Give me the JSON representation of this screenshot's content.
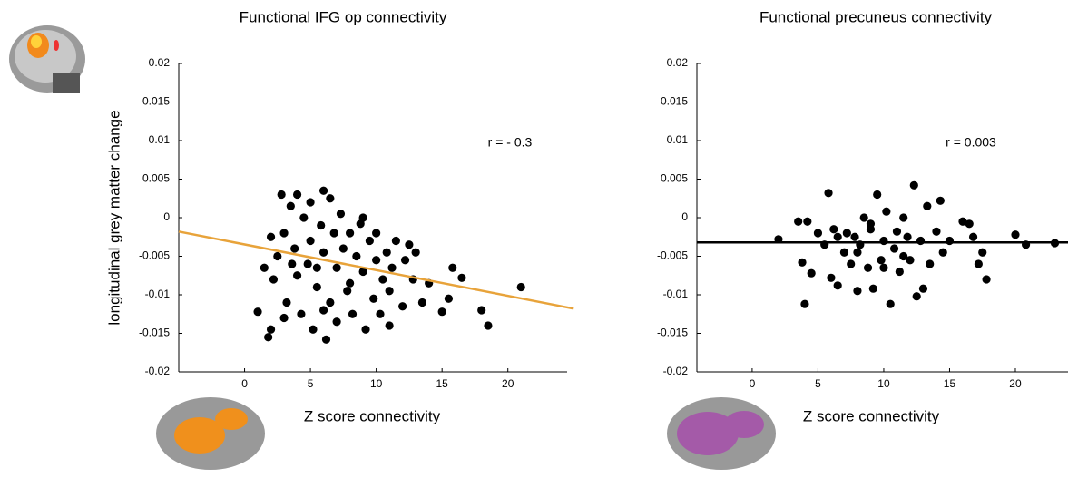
{
  "chart_data": [
    {
      "type": "scatter",
      "title": "Functional IFG op  connectivity",
      "x_label": "Z score connectivity",
      "y_label": "longitudinal grey matter change",
      "annotation": "r = - 0.3",
      "color": "#000000",
      "x": [
        1,
        1.5,
        1.8,
        2,
        2.2,
        2.5,
        2.8,
        3,
        3,
        3.2,
        3.5,
        3.8,
        4,
        4,
        4.3,
        4.5,
        4.8,
        5,
        5,
        5.2,
        5.5,
        5.8,
        6,
        6,
        6.2,
        6.5,
        6.5,
        6.8,
        7,
        7,
        7.3,
        7.5,
        7.8,
        8,
        8.2,
        8.5,
        8.8,
        9,
        9.2,
        9.5,
        9.8,
        10,
        10,
        10.3,
        10.5,
        10.8,
        11,
        11.2,
        11.5,
        12,
        12.2,
        12.5,
        12.8,
        13,
        13.5,
        14,
        15,
        15.5,
        15.8,
        16.5,
        18,
        18.5,
        21,
        2,
        3.6,
        5.5,
        8,
        9,
        11,
        6
      ],
      "values": [
        -0.0122,
        -0.0065,
        -0.0155,
        -0.0145,
        -0.008,
        -0.005,
        0.003,
        -0.013,
        -0.002,
        -0.011,
        0.0015,
        -0.004,
        0.003,
        -0.0075,
        -0.0125,
        0,
        -0.006,
        0.002,
        -0.003,
        -0.0145,
        -0.009,
        -0.001,
        0.0035,
        -0.0045,
        -0.0158,
        0.0025,
        -0.011,
        -0.002,
        -0.0065,
        -0.0135,
        0.0005,
        -0.004,
        -0.0095,
        -0.002,
        -0.0125,
        -0.005,
        -0.0008,
        -0.007,
        -0.0145,
        -0.003,
        -0.0105,
        -0.0055,
        -0.002,
        -0.0125,
        -0.008,
        -0.0045,
        -0.014,
        -0.0065,
        -0.003,
        -0.0115,
        -0.0055,
        -0.0035,
        -0.008,
        -0.0045,
        -0.011,
        -0.0085,
        -0.0122,
        -0.0105,
        -0.0065,
        -0.0078,
        -0.012,
        -0.014,
        -0.009,
        -0.0025,
        -0.006,
        -0.0065,
        -0.0085,
        0,
        -0.0095,
        -0.012
      ],
      "fit_line": {
        "x": [
          -5,
          25
        ],
        "y": [
          -0.0018,
          -0.0118
        ],
        "color": "#e8a33a"
      },
      "xlim": [
        -5,
        24.5
      ],
      "ylim": [
        -0.02,
        0.02
      ],
      "xticks": [
        0,
        5,
        10,
        15,
        20
      ],
      "yticks": [
        0.02,
        0.015,
        0.01,
        0.005,
        0,
        -0.005,
        -0.01,
        -0.015,
        -0.02
      ]
    },
    {
      "type": "scatter",
      "title": "Functional precuneus connectivity",
      "x_label": "Z score connectivity",
      "annotation": "r = 0.003",
      "color": "#000000",
      "x": [
        2,
        3.5,
        3.8,
        4,
        4.2,
        4.5,
        5,
        5.5,
        5.8,
        6,
        6.2,
        6.5,
        7,
        7.2,
        7.5,
        7.8,
        8,
        8.2,
        8.5,
        8.8,
        9,
        9.2,
        9.5,
        9.8,
        10,
        10.2,
        10.5,
        10.8,
        11,
        11.2,
        11.5,
        11.8,
        12,
        12.3,
        12.5,
        12.8,
        13,
        13.3,
        13.5,
        14,
        14.3,
        14.5,
        15,
        16,
        16.5,
        16.8,
        17.2,
        17.5,
        17.8,
        20,
        20.8,
        23,
        6.5,
        8,
        10,
        11.5,
        9
      ],
      "values": [
        -0.0028,
        -0.0005,
        -0.0058,
        -0.0112,
        -0.0005,
        -0.0072,
        -0.002,
        -0.0035,
        0.0032,
        -0.0078,
        -0.0015,
        -0.0088,
        -0.0045,
        -0.002,
        -0.006,
        -0.0025,
        -0.0095,
        -0.0035,
        0,
        -0.0065,
        -0.0015,
        -0.0092,
        0.003,
        -0.0055,
        -0.003,
        0.0008,
        -0.0112,
        -0.004,
        -0.0018,
        -0.007,
        0,
        -0.0025,
        -0.0055,
        0.0042,
        -0.0102,
        -0.003,
        -0.0092,
        0.0015,
        -0.006,
        -0.0018,
        0.0022,
        -0.0045,
        -0.003,
        -0.0005,
        -0.0008,
        -0.0025,
        -0.006,
        -0.0045,
        -0.008,
        -0.0022,
        -0.0035,
        -0.0033,
        -0.0025,
        -0.0045,
        -0.0065,
        -0.005,
        -0.0008
      ],
      "fit_line": {
        "x": [
          -4.2,
          24
        ],
        "y": [
          -0.0032,
          -0.0032
        ],
        "color": "#000000"
      },
      "xlim": [
        -4.2,
        24
      ],
      "ylim": [
        -0.02,
        0.02
      ],
      "xticks": [
        0,
        5,
        10,
        15,
        20
      ],
      "yticks": [
        0.02,
        0.015,
        0.01,
        0.005,
        0,
        -0.005,
        -0.01,
        -0.015,
        -0.02
      ]
    }
  ]
}
